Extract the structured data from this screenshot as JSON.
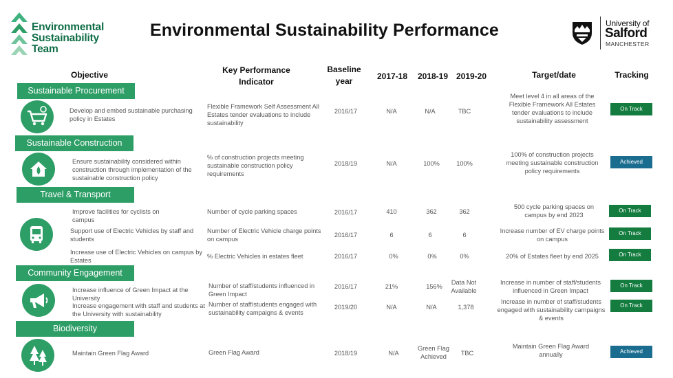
{
  "brand": {
    "team_line1": "Environmental",
    "team_line2": "Sustainability",
    "team_line3": "Team",
    "university_line1": "University of",
    "university_line2": "Salford",
    "university_line3": "MANCHESTER"
  },
  "title": "Environmental Sustainability Performance",
  "headers": {
    "objective": "Objective",
    "kpi_1": "Key Performance",
    "kpi_2": "Indicator",
    "baseline_1": "Baseline",
    "baseline_2": "year",
    "y2017": "2017-18",
    "y2018": "2018-19",
    "y2019": "2019-20",
    "target": "Target/date",
    "tracking": "Tracking"
  },
  "sections": {
    "procurement": "Sustainable Procurement",
    "construction": "Sustainable Construction",
    "travel": "Travel & Transport",
    "community": "Community Engagement",
    "biodiversity": "Biodiversity"
  },
  "icons": {
    "procurement": "shopping-cart-icon",
    "construction": "house-leaf-icon",
    "travel": "bus-icon",
    "community": "megaphone-icon",
    "biodiversity": "trees-icon"
  },
  "colors": {
    "section_green": "#2e9e67",
    "on_track": "#137c3e",
    "achieved": "#1a6d8f",
    "logo_green": "#0f6d46"
  },
  "rows": [
    {
      "objective": "Develop and embed sustainable purchasing policy in Estates",
      "kpi": "Flexible Framework Self Assessment All Estates tender evaluations to include sustainability",
      "baseline": "2016/17",
      "y2017": "N/A",
      "y2018": "N/A",
      "y2019": "TBC",
      "target": "Meet level 4 in all areas of the Flexible Framework All Estates tender evaluations to include sustainability assessment",
      "tracking": "On Track"
    },
    {
      "objective": "Ensure sustainability considered within construction through implementation of the sustainable construction policy",
      "kpi": "% of construction projects meeting sustainable construction policy requirements",
      "baseline": "2018/19",
      "y2017": "N/A",
      "y2018": "100%",
      "y2019": "100%",
      "target": "100% of construction projects meeting sustainable construction policy requirements",
      "tracking": "Achieved"
    },
    {
      "objective": "Improve facilities for cyclists on campus",
      "kpi": "Number of cycle parking spaces",
      "baseline": "2016/17",
      "y2017": "410",
      "y2018": "362",
      "y2019": "362",
      "target": "500 cycle parking spaces on campus by end 2023",
      "tracking": "On Track"
    },
    {
      "objective": "Support use of Electric Vehicles by staff and students",
      "kpi": "Number of Electric Vehicle charge points on campus",
      "baseline": "2016/17",
      "y2017": "6",
      "y2018": "6",
      "y2019": "6",
      "target": "Increase number of EV charge points on campus",
      "tracking": "On Track"
    },
    {
      "objective": "Increase use of Electric Vehicles on campus by Estates",
      "kpi": "% Electric Vehicles in estates fleet",
      "baseline": "2016/17",
      "y2017": "0%",
      "y2018": "0%",
      "y2019": "0%",
      "target": "20% of Estates fleet by end  2025",
      "tracking": "On Track"
    },
    {
      "objective": "Increase influence of Green Impact at the University",
      "kpi": "Number of staff/students influenced in Green Impact",
      "baseline": "2016/17",
      "y2017": "21%",
      "y2018": "156%",
      "y2019": "Data Not Available",
      "target": "Increase in number of staff/students influenced in Green Impact",
      "tracking": "On Track"
    },
    {
      "objective": "Increase engagement with staff and students at the University with sustainability",
      "kpi": "Number of staff/students engaged with sustainability campaigns & events",
      "baseline": "2019/20",
      "y2017": "N/A",
      "y2018": "N/A",
      "y2019": "1,378",
      "target": "Increase in number of staff/students engaged with sustainability campaigns & events",
      "tracking": "On Track"
    },
    {
      "objective": "Maintain Green Flag Award",
      "kpi": "Green Flag Award",
      "baseline": "2018/19",
      "y2017": "N/A",
      "y2018": "Green Flag Achieved",
      "y2019": "TBC",
      "target": "Maintain Green Flag Award annually",
      "tracking": "Achieved"
    }
  ]
}
